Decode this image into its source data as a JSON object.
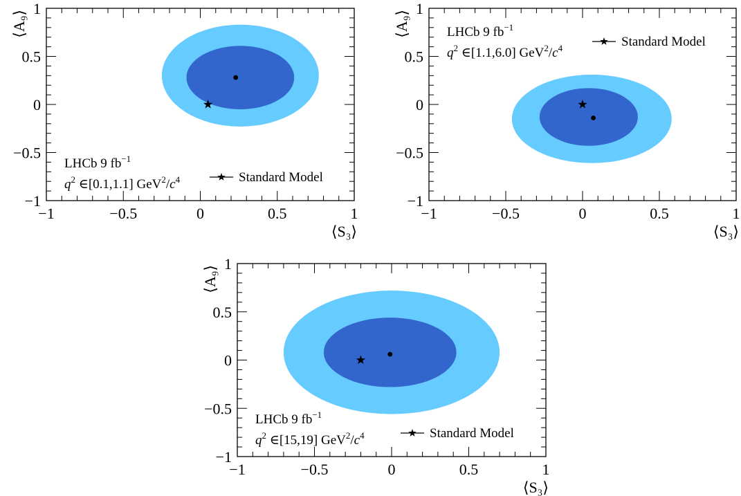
{
  "colors": {
    "sigma2": "#66ccff",
    "sigma1": "#3366cc",
    "marker": "#000000"
  },
  "chart_data": [
    {
      "type": "scatter",
      "panel": "top-left",
      "xlabel": "⟨S₃⟩",
      "ylabel": "⟨A₉⟩",
      "xlim": [
        -1,
        1
      ],
      "ylim": [
        -1,
        1
      ],
      "xticks": [
        "−1",
        "−0.5",
        "0",
        "0.5",
        "1"
      ],
      "yticks": [
        "−1",
        "−0.5",
        "0",
        "0.5",
        "1"
      ],
      "experiment": "LHCb 9 fb",
      "lumi_sup": "−1",
      "q2_range": "[0.1,1.1]",
      "sm_label": "Standard Model",
      "legend_position": "bottom-left",
      "best_fit": {
        "x": 0.23,
        "y": 0.28
      },
      "standard_model": {
        "x": 0.05,
        "y": 0.0
      },
      "contour_2sigma": {
        "cx": 0.26,
        "cy": 0.3,
        "rx": 0.51,
        "ry": 0.53
      },
      "contour_1sigma": {
        "cx": 0.26,
        "cy": 0.28,
        "rx": 0.35,
        "ry": 0.33
      }
    },
    {
      "type": "scatter",
      "panel": "top-right",
      "xlabel": "⟨S₃⟩",
      "ylabel": "⟨A₉⟩",
      "xlim": [
        -1,
        1
      ],
      "ylim": [
        -1,
        1
      ],
      "xticks": [
        "−1",
        "−0.5",
        "0",
        "0.5",
        "1"
      ],
      "yticks": [
        "−1",
        "−0.5",
        "0",
        "0.5",
        "1"
      ],
      "experiment": "LHCb 9 fb",
      "lumi_sup": "−1",
      "q2_range": "[1.1,6.0]",
      "sm_label": "Standard Model",
      "legend_position": "top",
      "best_fit": {
        "x": 0.07,
        "y": -0.14
      },
      "standard_model": {
        "x": 0.0,
        "y": 0.0
      },
      "contour_2sigma": {
        "cx": 0.06,
        "cy": -0.15,
        "rx": 0.52,
        "ry": 0.46
      },
      "contour_1sigma": {
        "cx": 0.04,
        "cy": -0.13,
        "rx": 0.32,
        "ry": 0.3
      }
    },
    {
      "type": "scatter",
      "panel": "bottom",
      "xlabel": "⟨S₃⟩",
      "ylabel": "⟨A₉⟩",
      "xlim": [
        -1,
        1
      ],
      "ylim": [
        -1,
        1
      ],
      "xticks": [
        "−1",
        "−0.5",
        "0",
        "0.5",
        "1"
      ],
      "yticks": [
        "−1",
        "−0.5",
        "0",
        "0.5",
        "1"
      ],
      "experiment": "LHCb 9 fb",
      "lumi_sup": "−1",
      "q2_range": "[15,19]",
      "sm_label": "Standard Model",
      "legend_position": "bottom-left",
      "best_fit": {
        "x": -0.01,
        "y": 0.06
      },
      "standard_model": {
        "x": -0.2,
        "y": 0.0
      },
      "contour_2sigma": {
        "cx": 0.0,
        "cy": 0.08,
        "rx": 0.7,
        "ry": 0.64
      },
      "contour_1sigma": {
        "cx": -0.01,
        "cy": 0.08,
        "rx": 0.43,
        "ry": 0.36
      }
    }
  ]
}
